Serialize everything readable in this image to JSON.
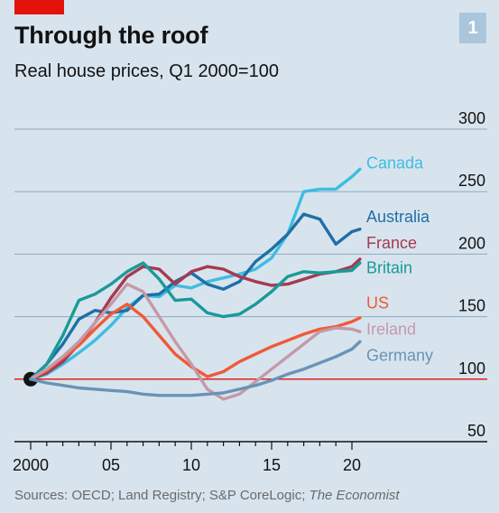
{
  "header": {
    "title": "Through the roof",
    "subtitle": "Real house prices, Q1 2000=100",
    "chart_number": "1"
  },
  "footer": {
    "source_prefix": "Sources: OECD; Land Registry; S&P CoreLogic; ",
    "source_italic": "The Economist"
  },
  "chart_data": {
    "type": "line",
    "title": "Through the roof",
    "subtitle": "Real house prices, Q1 2000=100",
    "xlabel": "",
    "ylabel": "",
    "xlim": [
      1999.5,
      2021.0
    ],
    "ylim": [
      50,
      300
    ],
    "y_ticks": [
      50,
      100,
      150,
      200,
      250,
      300
    ],
    "y_tick_labels": [
      "50",
      "100",
      "150",
      "200",
      "250",
      "300"
    ],
    "x_ticks": [
      2000,
      2005,
      2010,
      2015,
      2020
    ],
    "x_tick_labels": [
      "2000",
      "05",
      "10",
      "15",
      "20"
    ],
    "grid": true,
    "legend": "direct labels at right end of lines",
    "baseline": 100,
    "start_point": [
      2000,
      100
    ],
    "series": [
      {
        "name": "Canada",
        "color": "#3ebde0",
        "x": [
          2000,
          2001,
          2002,
          2003,
          2004,
          2005,
          2006,
          2007,
          2008,
          2009,
          2010,
          2011,
          2012,
          2013,
          2014,
          2015,
          2016,
          2017,
          2018,
          2019,
          2020,
          2020.5
        ],
        "y": [
          100,
          104,
          112,
          121,
          131,
          143,
          157,
          167,
          166,
          175,
          173,
          178,
          181,
          184,
          188,
          197,
          216,
          250,
          252,
          252,
          262,
          268
        ]
      },
      {
        "name": "Australia",
        "color": "#1f6fa6",
        "x": [
          2000,
          2001,
          2002,
          2003,
          2004,
          2005,
          2006,
          2007,
          2008,
          2009,
          2010,
          2011,
          2012,
          2013,
          2014,
          2015,
          2016,
          2017,
          2018,
          2019,
          2020,
          2020.5
        ],
        "y": [
          100,
          112,
          128,
          148,
          155,
          153,
          155,
          167,
          168,
          178,
          185,
          176,
          172,
          178,
          194,
          204,
          216,
          232,
          228,
          208,
          218,
          220
        ]
      },
      {
        "name": "France",
        "color": "#a63a50",
        "x": [
          2000,
          2001,
          2002,
          2003,
          2004,
          2005,
          2006,
          2007,
          2008,
          2009,
          2010,
          2011,
          2012,
          2013,
          2014,
          2015,
          2016,
          2017,
          2018,
          2019,
          2020,
          2020.5
        ],
        "y": [
          100,
          105,
          114,
          128,
          145,
          165,
          182,
          190,
          188,
          176,
          186,
          190,
          188,
          182,
          178,
          175,
          176,
          180,
          184,
          186,
          190,
          196
        ]
      },
      {
        "name": "Britain",
        "color": "#1a9a98",
        "x": [
          2000,
          2001,
          2002,
          2003,
          2004,
          2005,
          2006,
          2007,
          2008,
          2009,
          2010,
          2011,
          2012,
          2013,
          2014,
          2015,
          2016,
          2017,
          2018,
          2019,
          2020,
          2020.5
        ],
        "y": [
          100,
          112,
          135,
          163,
          168,
          176,
          186,
          193,
          180,
          163,
          164,
          153,
          150,
          152,
          160,
          170,
          182,
          186,
          185,
          186,
          187,
          193
        ]
      },
      {
        "name": "US",
        "color": "#f05a38",
        "x": [
          2000,
          2001,
          2002,
          2003,
          2004,
          2005,
          2006,
          2007,
          2008,
          2009,
          2010,
          2011,
          2012,
          2013,
          2014,
          2015,
          2016,
          2017,
          2018,
          2019,
          2020,
          2020.5
        ],
        "y": [
          100,
          107,
          117,
          127,
          140,
          152,
          160,
          150,
          135,
          120,
          110,
          102,
          106,
          114,
          120,
          126,
          131,
          136,
          140,
          142,
          146,
          149
        ]
      },
      {
        "name": "Ireland",
        "color": "#c49aa8",
        "x": [
          2000,
          2001,
          2002,
          2003,
          2004,
          2005,
          2006,
          2007,
          2008,
          2009,
          2010,
          2011,
          2012,
          2013,
          2014,
          2015,
          2016,
          2017,
          2018,
          2019,
          2020,
          2020.5
        ],
        "y": [
          100,
          108,
          118,
          130,
          145,
          160,
          176,
          170,
          150,
          130,
          112,
          92,
          84,
          88,
          98,
          108,
          118,
          128,
          138,
          141,
          140,
          138
        ]
      },
      {
        "name": "Germany",
        "color": "#6a93b5",
        "x": [
          2000,
          2001,
          2002,
          2003,
          2004,
          2005,
          2006,
          2007,
          2008,
          2009,
          2010,
          2011,
          2012,
          2013,
          2014,
          2015,
          2016,
          2017,
          2018,
          2019,
          2020,
          2020.5
        ],
        "y": [
          100,
          97,
          95,
          93,
          92,
          91,
          90,
          88,
          87,
          87,
          87,
          88,
          89,
          92,
          95,
          99,
          104,
          108,
          113,
          118,
          124,
          130
        ]
      }
    ],
    "label_positions_y": {
      "Canada": 273,
      "Australia": 230,
      "France": 209,
      "Britain": 189,
      "US": 161,
      "Ireland": 140,
      "Germany": 119
    }
  }
}
